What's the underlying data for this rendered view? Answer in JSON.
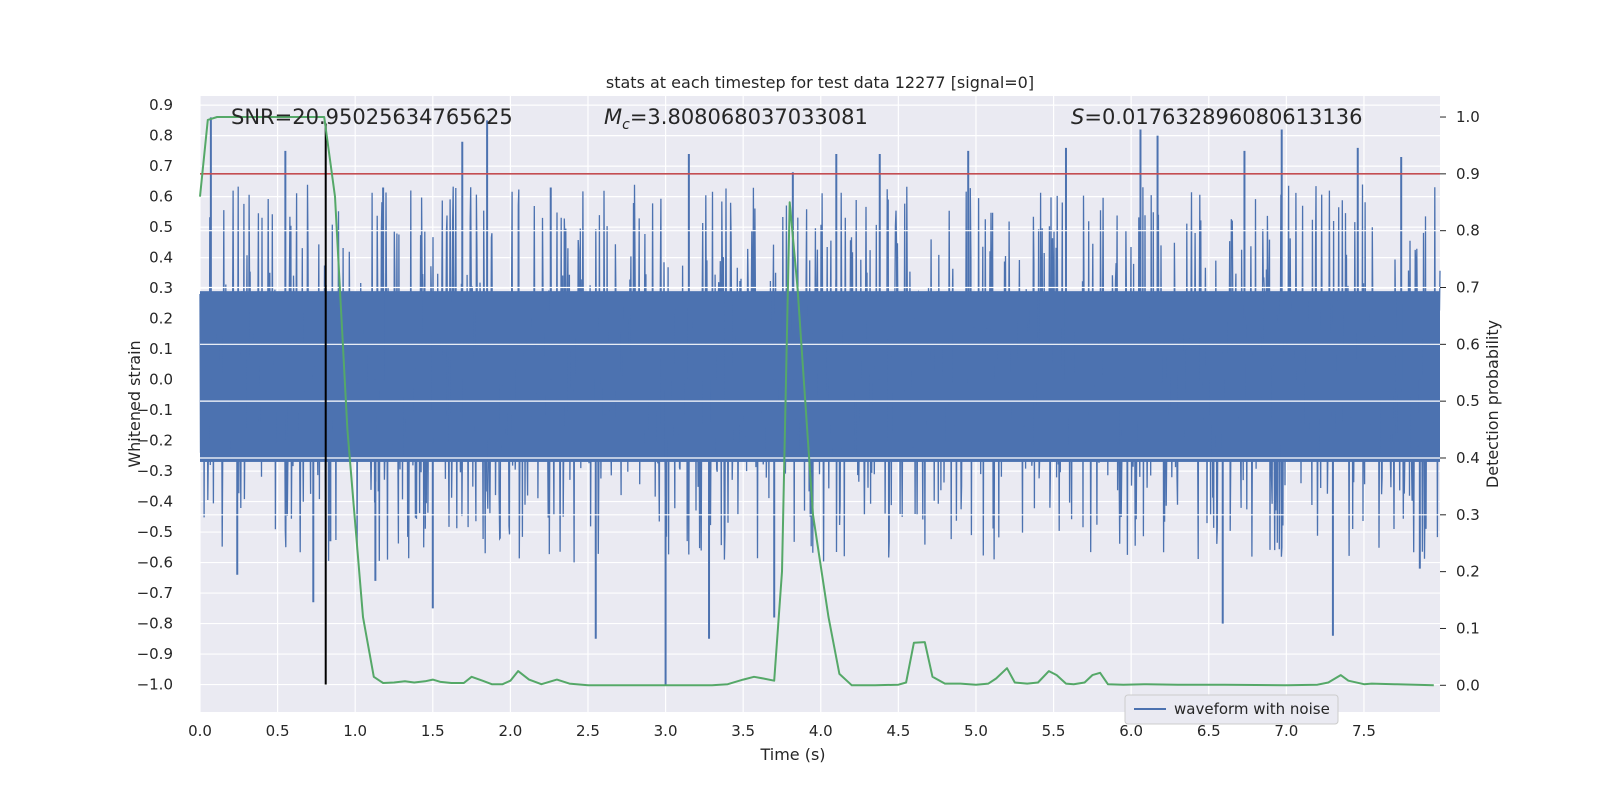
{
  "chart_data": {
    "type": "line",
    "title": "stats at each timestep for test data 12277 [signal=0]",
    "xlabel": "Time (s)",
    "ylabel": "Whitened strain",
    "y2label": "Detection probability",
    "xlim": [
      0.0,
      7.99
    ],
    "ylim": [
      -1.09,
      0.93
    ],
    "y2lim": [
      -0.047,
      1.037
    ],
    "xticks": [
      "0.0",
      "0.5",
      "1.0",
      "1.5",
      "2.0",
      "2.5",
      "3.0",
      "3.5",
      "4.0",
      "4.5",
      "5.0",
      "5.5",
      "6.0",
      "6.5",
      "7.0",
      "7.5"
    ],
    "yticks": [
      "0.9",
      "0.8",
      "0.7",
      "0.6",
      "0.5",
      "0.4",
      "0.3",
      "0.2",
      "0.1",
      "0.0",
      "−0.1",
      "−0.2",
      "−0.3",
      "−0.4",
      "−0.5",
      "−0.6",
      "−0.7",
      "−0.8",
      "−0.9",
      "−1.0"
    ],
    "y2ticks": [
      "1.0",
      "0.9",
      "0.8",
      "0.7",
      "0.6",
      "0.5",
      "0.4",
      "0.3",
      "0.2",
      "0.1",
      "0.0"
    ],
    "annotations": {
      "snr": "SNR=20.95025634765625",
      "mc_symbol": "M",
      "mc_sub": "c",
      "mc_value": "=3.808068037033081",
      "s_symbol": "S",
      "s_value": "=0.017632896080613136"
    },
    "threshold": {
      "value": 0.9,
      "axis": "right",
      "color": "#c44e52"
    },
    "vline": {
      "x": 0.81,
      "ymin": -1.0,
      "ymax": 0.84,
      "color": "#000000"
    },
    "legend": {
      "label": "waveform with noise",
      "position": "lower-right"
    },
    "waveform": {
      "name": "waveform with noise",
      "color": "#4c72b0",
      "duration_s": 7.99,
      "core_band": [
        -0.27,
        0.29
      ],
      "extreme_peaks": [
        {
          "x": 0.07,
          "y": 0.86
        },
        {
          "x": 0.24,
          "y": -0.64
        },
        {
          "x": 0.55,
          "y": 0.75
        },
        {
          "x": 0.73,
          "y": -0.73
        },
        {
          "x": 0.84,
          "y": -0.53
        },
        {
          "x": 1.18,
          "y": 0.63
        },
        {
          "x": 1.13,
          "y": -0.66
        },
        {
          "x": 1.5,
          "y": -0.75
        },
        {
          "x": 1.69,
          "y": 0.78
        },
        {
          "x": 1.85,
          "y": 0.85
        },
        {
          "x": 2.26,
          "y": 0.63
        },
        {
          "x": 2.55,
          "y": -0.85
        },
        {
          "x": 3.0,
          "y": -1.0
        },
        {
          "x": 3.15,
          "y": 0.74
        },
        {
          "x": 3.28,
          "y": -0.85
        },
        {
          "x": 3.7,
          "y": -0.78
        },
        {
          "x": 3.82,
          "y": 0.68
        },
        {
          "x": 4.1,
          "y": 0.74
        },
        {
          "x": 4.38,
          "y": 0.74
        },
        {
          "x": 4.95,
          "y": 0.75
        },
        {
          "x": 5.58,
          "y": 0.76
        },
        {
          "x": 6.06,
          "y": 0.82
        },
        {
          "x": 6.17,
          "y": 0.8
        },
        {
          "x": 6.59,
          "y": -0.8
        },
        {
          "x": 6.73,
          "y": 0.75
        },
        {
          "x": 6.97,
          "y": 0.82
        },
        {
          "x": 7.3,
          "y": -0.84
        },
        {
          "x": 7.46,
          "y": 0.76
        },
        {
          "x": 7.74,
          "y": 0.73
        },
        {
          "x": 7.86,
          "y": -0.62
        }
      ]
    },
    "detection_probability": {
      "name": "detection probability",
      "color": "#55a868",
      "x": [
        0.0,
        0.05,
        0.11,
        0.2,
        0.3,
        0.4,
        0.5,
        0.6,
        0.7,
        0.8,
        0.87,
        0.95,
        1.05,
        1.12,
        1.18,
        1.25,
        1.32,
        1.38,
        1.45,
        1.5,
        1.55,
        1.62,
        1.7,
        1.75,
        1.82,
        1.88,
        1.95,
        2.0,
        2.05,
        2.12,
        2.2,
        2.3,
        2.38,
        2.5,
        2.7,
        3.0,
        3.3,
        3.4,
        3.5,
        3.57,
        3.63,
        3.7,
        3.75,
        3.8,
        3.85,
        3.95,
        4.05,
        4.12,
        4.2,
        4.35,
        4.5,
        4.55,
        4.6,
        4.67,
        4.72,
        4.8,
        4.9,
        5.0,
        5.08,
        5.13,
        5.2,
        5.25,
        5.33,
        5.4,
        5.47,
        5.52,
        5.58,
        5.63,
        5.7,
        5.75,
        5.8,
        5.85,
        5.95,
        6.1,
        6.3,
        6.6,
        7.0,
        7.2,
        7.27,
        7.35,
        7.4,
        7.5,
        7.55,
        7.7,
        7.95
      ],
      "y": [
        0.86,
        0.995,
        1.0,
        1.0,
        1.0,
        1.0,
        1.0,
        1.0,
        1.0,
        1.0,
        0.86,
        0.45,
        0.12,
        0.015,
        0.004,
        0.005,
        0.007,
        0.005,
        0.007,
        0.01,
        0.006,
        0.004,
        0.004,
        0.015,
        0.008,
        0.002,
        0.002,
        0.008,
        0.025,
        0.01,
        0.002,
        0.01,
        0.003,
        0.0,
        0.0,
        0.0,
        0.0,
        0.002,
        0.01,
        0.015,
        0.012,
        0.008,
        0.2,
        0.85,
        0.7,
        0.3,
        0.12,
        0.02,
        0.0,
        0.0,
        0.001,
        0.005,
        0.075,
        0.076,
        0.015,
        0.003,
        0.003,
        0.001,
        0.003,
        0.012,
        0.03,
        0.005,
        0.003,
        0.005,
        0.025,
        0.018,
        0.003,
        0.002,
        0.005,
        0.018,
        0.022,
        0.002,
        0.001,
        0.002,
        0.001,
        0.001,
        0.0,
        0.001,
        0.005,
        0.018,
        0.008,
        0.002,
        0.003,
        0.002,
        0.0
      ]
    }
  }
}
